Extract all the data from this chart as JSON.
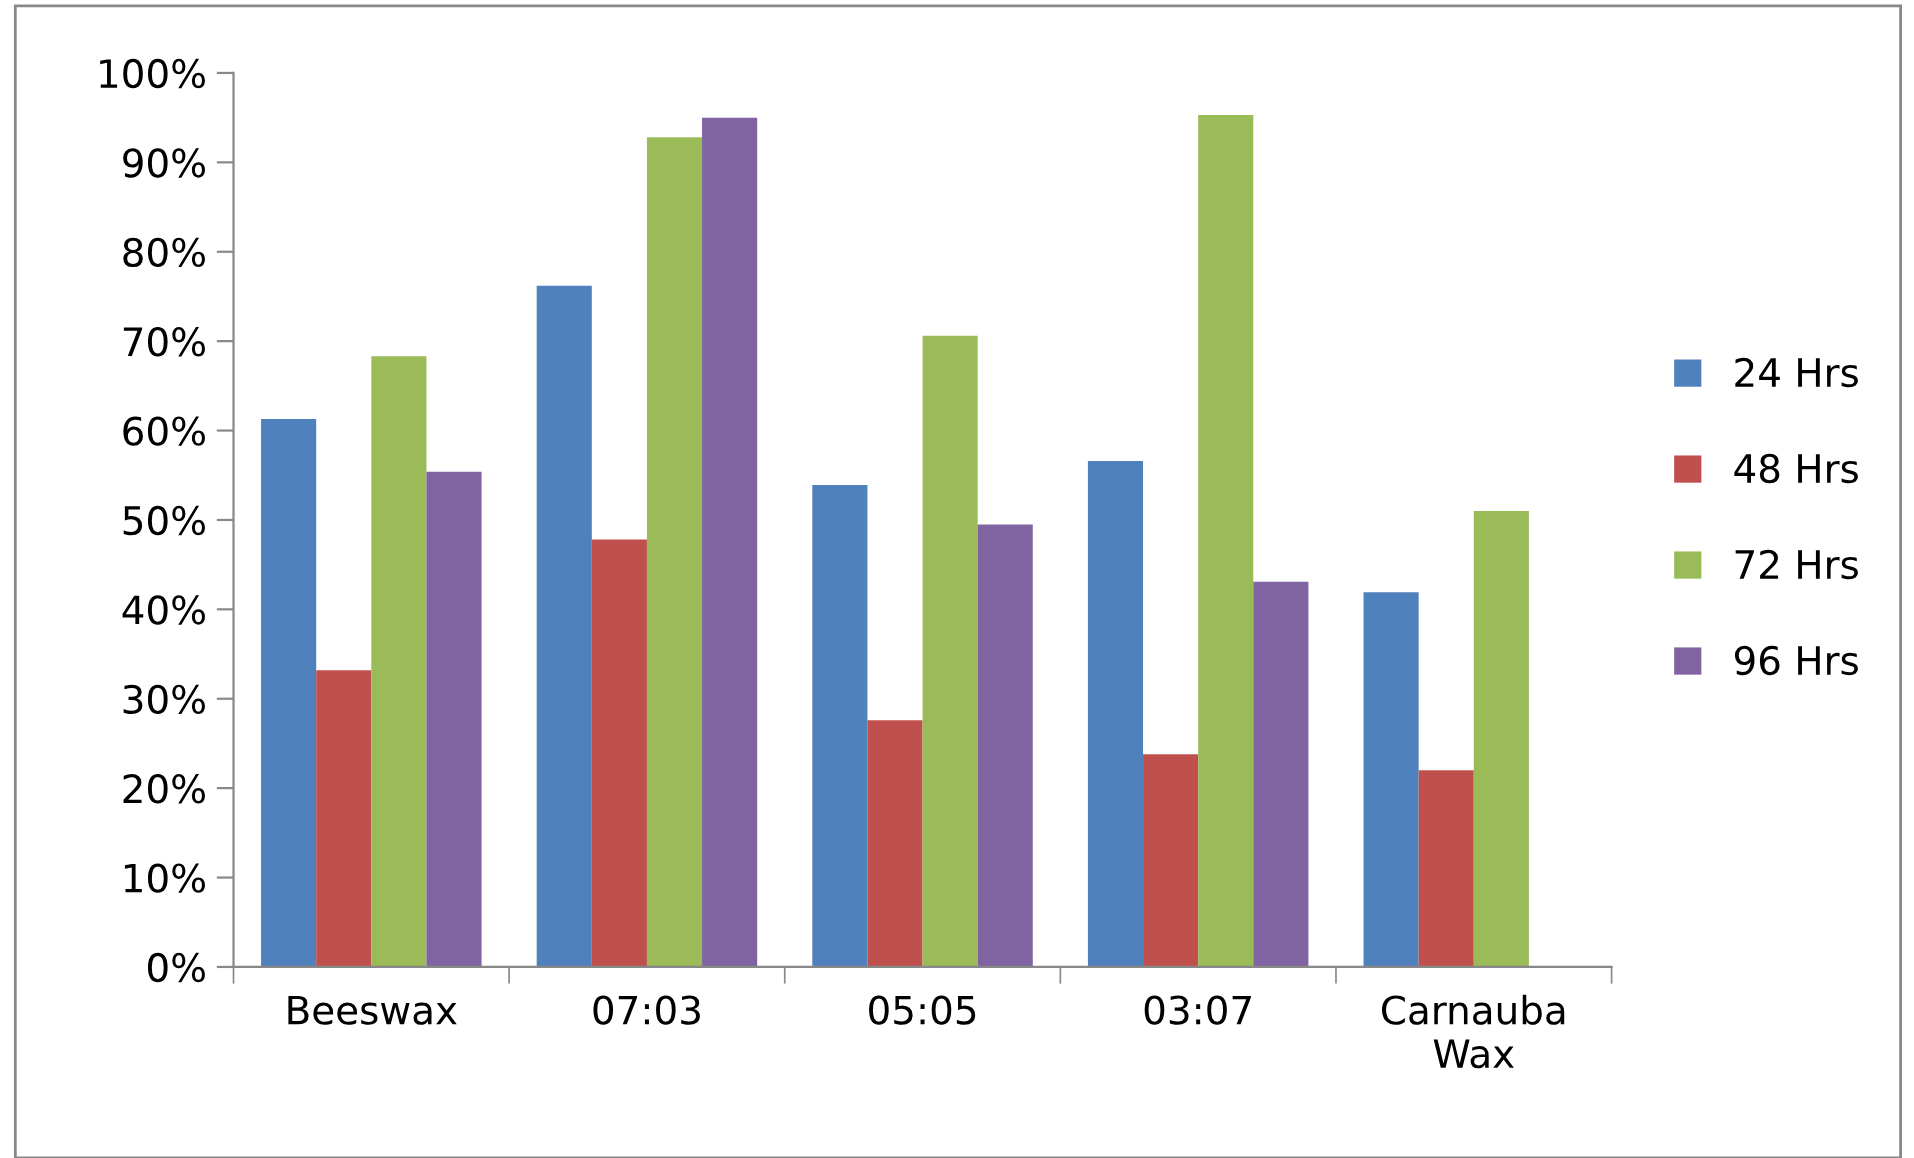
{
  "chart_data": {
    "type": "bar",
    "categories": [
      "Beeswax",
      "07:03",
      "05:05",
      "03:07",
      "Carnauba\nWax"
    ],
    "series": [
      {
        "name": "24 Hrs",
        "color": "#4f81bd",
        "values": [
          61.3,
          76.2,
          53.9,
          56.6,
          41.9
        ]
      },
      {
        "name": "48 Hrs",
        "color": "#c0504d",
        "values": [
          33.2,
          47.8,
          27.6,
          23.8,
          22.0
        ]
      },
      {
        "name": "72 Hrs",
        "color": "#9bbb59",
        "values": [
          68.3,
          92.8,
          70.6,
          95.3,
          51.0
        ]
      },
      {
        "name": "96 Hrs",
        "color": "#8064a2",
        "values": [
          55.4,
          95.0,
          49.5,
          43.1,
          0
        ]
      }
    ],
    "ylim": [
      0,
      100
    ],
    "yticks": [
      {
        "value": 0,
        "label": "0%"
      },
      {
        "value": 10,
        "label": "10%"
      },
      {
        "value": 20,
        "label": "20%"
      },
      {
        "value": 30,
        "label": "30%"
      },
      {
        "value": 40,
        "label": "40%"
      },
      {
        "value": 50,
        "label": "50%"
      },
      {
        "value": 60,
        "label": "60%"
      },
      {
        "value": 70,
        "label": "70%"
      },
      {
        "value": 80,
        "label": "80%"
      },
      {
        "value": 90,
        "label": "90%"
      },
      {
        "value": 100,
        "label": "100%"
      }
    ],
    "grid": false,
    "legend": "right"
  }
}
